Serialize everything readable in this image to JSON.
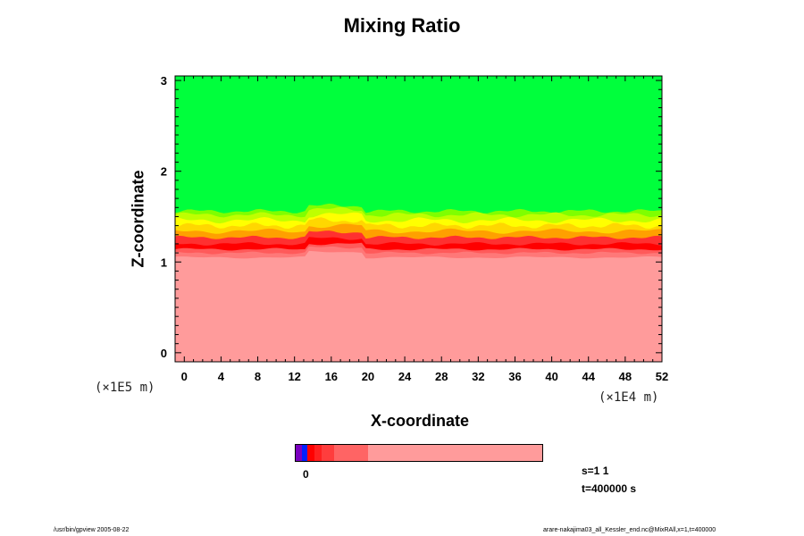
{
  "chart_data": {
    "type": "heatmap",
    "title": "Mixing Ratio",
    "xlabel": "X-coordinate",
    "ylabel": "Z-coordinate",
    "x_scale_label": "(×1E4 m)",
    "y_scale_label": "(×1E5 m)",
    "xlim": [
      -1,
      52
    ],
    "ylim": [
      -0.1,
      3.05
    ],
    "x_ticks": [
      0,
      4,
      8,
      12,
      16,
      20,
      24,
      28,
      32,
      36,
      40,
      44,
      48,
      52
    ],
    "y_ticks": [
      0,
      1,
      2,
      3
    ],
    "fields": {
      "low_region_color": "#ff9b9b",
      "upper_region_color": "#00ff3c",
      "transition_colors": [
        "#ff0000",
        "#ff3030",
        "#ffa000",
        "#ffd700",
        "#ffff00",
        "#bfff00",
        "#7fff00"
      ]
    },
    "interface_z_approx": [
      1.1,
      1.55
    ],
    "colorbar": {
      "tick_label": "0",
      "colors": [
        "#7a00bf",
        "#0020ff",
        "#ff0000",
        "#ff2020",
        "#ff3d3d",
        "#ff6464",
        "#ff9b9b"
      ]
    }
  },
  "info": {
    "s_label": "s=1 1",
    "t_label": "t=400000 s"
  },
  "footer": {
    "left": "/usr/bin/gpview 2005-08-22",
    "right": "arare-nakajima03_all_Kessler_end.nc@MixRAll,x=1,t=400000"
  }
}
